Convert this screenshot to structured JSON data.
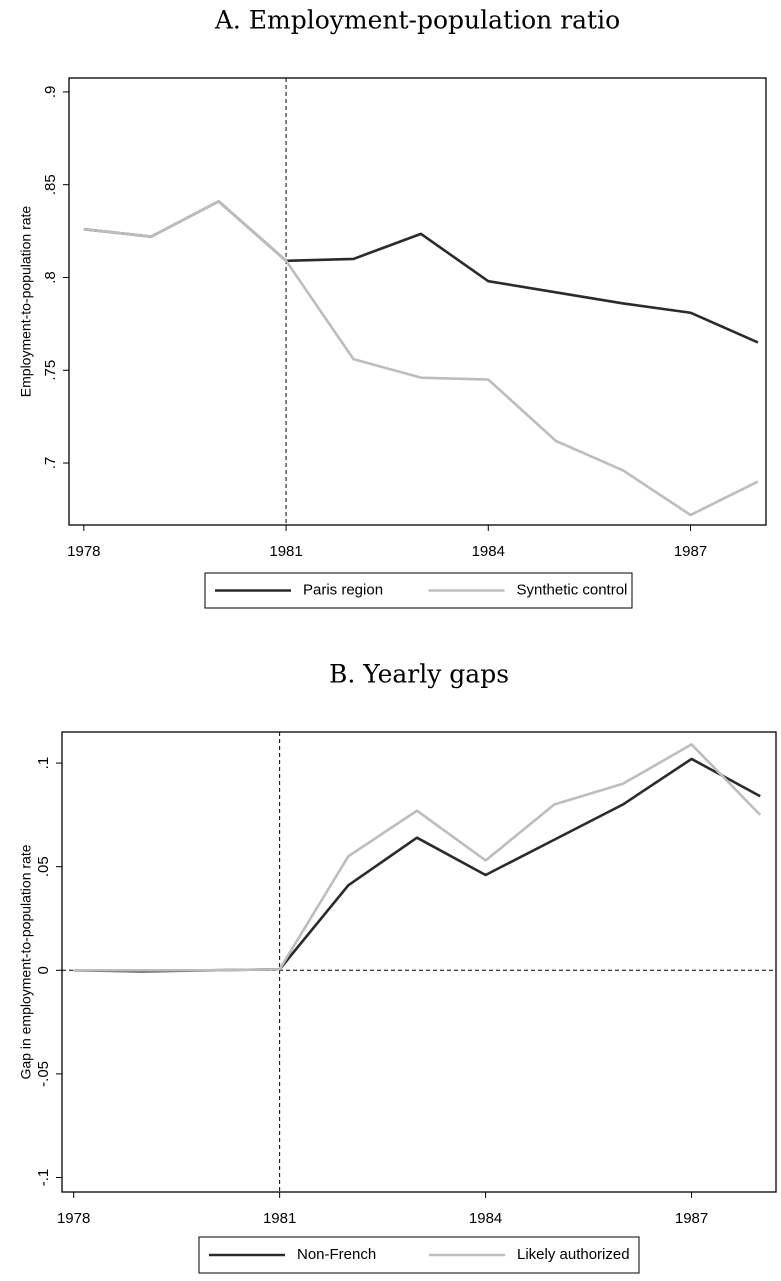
{
  "chart_data": [
    {
      "type": "line",
      "title": "A. Employment-population ratio",
      "y_label": "Employment-to-population rate",
      "x": [
        1978,
        1979,
        1980,
        1981,
        1982,
        1983,
        1984,
        1985,
        1986,
        1987,
        1988
      ],
      "series": [
        {
          "name": "Paris region",
          "color": "#2b2b2b",
          "values": [
            0.826,
            0.822,
            0.841,
            0.809,
            0.81,
            0.8235,
            0.798,
            0.792,
            0.786,
            0.781,
            0.765
          ]
        },
        {
          "name": "Synthetic control",
          "color": "#bdbdbd",
          "values": [
            0.826,
            0.822,
            0.841,
            0.809,
            0.756,
            0.746,
            0.745,
            0.712,
            0.696,
            0.672,
            0.69
          ]
        }
      ],
      "xlim": [
        1977.78,
        1988.12
      ],
      "xticks": [
        1978,
        1981,
        1984,
        1987
      ],
      "ylim": [
        0.6666,
        0.9075
      ],
      "yticks": [
        {
          "value": 0.7,
          "label": ".7"
        },
        {
          "value": 0.75,
          "label": ".75"
        },
        {
          "value": 0.8,
          "label": ".8"
        },
        {
          "value": 0.85,
          "label": ".85"
        },
        {
          "value": 0.9,
          "label": ".9"
        }
      ],
      "vline": 1981,
      "legend": "bottom"
    },
    {
      "type": "line",
      "title": "B. Yearly gaps",
      "y_label": "Gap in employment-to-population rate",
      "x": [
        1978,
        1979,
        1980,
        1981,
        1982,
        1983,
        1984,
        1985,
        1986,
        1987,
        1988
      ],
      "series": [
        {
          "name": "Non-French",
          "color": "#2b2b2b",
          "values": [
            0,
            -0.0005,
            0,
            0.0005,
            0.041,
            0.064,
            0.046,
            0.063,
            0.08,
            0.102,
            0.084
          ]
        },
        {
          "name": "Likely authorized",
          "color": "#bdbdbd",
          "values": [
            0,
            0,
            0,
            0.0005,
            0.055,
            0.077,
            0.053,
            0.08,
            0.09,
            0.109,
            0.075
          ]
        }
      ],
      "xlim": [
        1977.83,
        1988.23
      ],
      "xticks": [
        1978,
        1981,
        1984,
        1987
      ],
      "ylim": [
        -0.107,
        0.115
      ],
      "yticks": [
        {
          "value": -0.1,
          "label": "-.1"
        },
        {
          "value": -0.05,
          "label": "-.05"
        },
        {
          "value": 0,
          "label": "0"
        },
        {
          "value": 0.05,
          "label": ".05"
        },
        {
          "value": 0.1,
          "label": ".1"
        }
      ],
      "vline": 1981,
      "hline": 0,
      "legend": "bottom"
    }
  ]
}
